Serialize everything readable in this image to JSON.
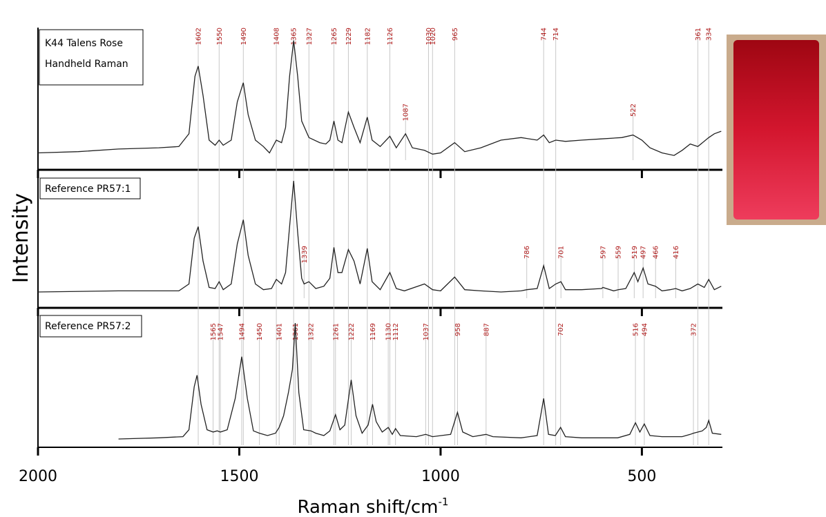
{
  "chart_data": [
    {
      "type": "line",
      "title": "K44 Talens Rose",
      "subtitle": "Handheld Raman",
      "color": "#222222",
      "label_color": "#b01c1c",
      "xlim": [
        2000,
        300
      ],
      "ylim": [
        0,
        1
      ],
      "x": [
        2000,
        1900,
        1800,
        1700,
        1650,
        1625,
        1610,
        1602,
        1590,
        1575,
        1560,
        1550,
        1540,
        1520,
        1505,
        1490,
        1478,
        1460,
        1440,
        1425,
        1408,
        1395,
        1385,
        1375,
        1365,
        1355,
        1345,
        1327,
        1300,
        1285,
        1275,
        1265,
        1255,
        1245,
        1229,
        1215,
        1200,
        1182,
        1170,
        1150,
        1126,
        1110,
        1087,
        1070,
        1040,
        1020,
        1000,
        965,
        940,
        900,
        850,
        800,
        760,
        744,
        730,
        714,
        690,
        650,
        600,
        550,
        522,
        500,
        480,
        450,
        420,
        400,
        380,
        361,
        334,
        320,
        303
      ],
      "values": [
        0.1,
        0.11,
        0.13,
        0.14,
        0.15,
        0.25,
        0.7,
        0.78,
        0.55,
        0.2,
        0.16,
        0.2,
        0.16,
        0.2,
        0.5,
        0.65,
        0.4,
        0.2,
        0.15,
        0.1,
        0.2,
        0.18,
        0.3,
        0.7,
        0.98,
        0.7,
        0.35,
        0.22,
        0.18,
        0.17,
        0.2,
        0.35,
        0.2,
        0.18,
        0.42,
        0.3,
        0.18,
        0.38,
        0.2,
        0.15,
        0.23,
        0.14,
        0.25,
        0.14,
        0.12,
        0.09,
        0.1,
        0.18,
        0.11,
        0.14,
        0.2,
        0.22,
        0.2,
        0.24,
        0.18,
        0.2,
        0.19,
        0.2,
        0.21,
        0.22,
        0.24,
        0.2,
        0.14,
        0.1,
        0.08,
        0.12,
        0.17,
        0.15,
        0.22,
        0.25,
        0.27
      ],
      "peak_labels": [
        1602,
        1550,
        1490,
        1408,
        1365,
        1327,
        1265,
        1229,
        1182,
        1126,
        1030,
        1020,
        965,
        744,
        714,
        361,
        334
      ],
      "peak_labels_low": [
        1087,
        522
      ]
    },
    {
      "type": "line",
      "title": "Reference PR57:1",
      "color": "#222222",
      "label_color": "#b01c1c",
      "xlim": [
        2000,
        300
      ],
      "ylim": [
        0,
        1
      ],
      "x": [
        2000,
        1800,
        1650,
        1625,
        1612,
        1602,
        1590,
        1575,
        1560,
        1550,
        1540,
        1520,
        1505,
        1490,
        1478,
        1460,
        1440,
        1420,
        1408,
        1395,
        1385,
        1375,
        1365,
        1355,
        1345,
        1339,
        1327,
        1310,
        1290,
        1275,
        1265,
        1255,
        1245,
        1229,
        1215,
        1200,
        1182,
        1170,
        1150,
        1126,
        1110,
        1090,
        1040,
        1020,
        1000,
        965,
        940,
        900,
        850,
        800,
        786,
        760,
        744,
        730,
        714,
        701,
        690,
        650,
        600,
        597,
        570,
        559,
        540,
        519,
        510,
        497,
        485,
        466,
        450,
        430,
        416,
        400,
        380,
        361,
        345,
        334,
        320,
        303
      ],
      "values": [
        0.03,
        0.04,
        0.04,
        0.1,
        0.5,
        0.6,
        0.3,
        0.07,
        0.06,
        0.12,
        0.05,
        0.1,
        0.45,
        0.66,
        0.35,
        0.1,
        0.05,
        0.06,
        0.14,
        0.1,
        0.2,
        0.6,
        1.0,
        0.55,
        0.15,
        0.1,
        0.12,
        0.06,
        0.08,
        0.15,
        0.42,
        0.2,
        0.2,
        0.4,
        0.3,
        0.1,
        0.41,
        0.12,
        0.05,
        0.2,
        0.06,
        0.04,
        0.1,
        0.05,
        0.04,
        0.16,
        0.05,
        0.04,
        0.03,
        0.04,
        0.05,
        0.06,
        0.26,
        0.06,
        0.1,
        0.12,
        0.05,
        0.05,
        0.06,
        0.07,
        0.04,
        0.05,
        0.06,
        0.2,
        0.12,
        0.24,
        0.1,
        0.08,
        0.04,
        0.05,
        0.06,
        0.04,
        0.06,
        0.1,
        0.07,
        0.14,
        0.05,
        0.08
      ],
      "peak_labels": [
        1339,
        786,
        701,
        597,
        559,
        519,
        497,
        466,
        416
      ]
    },
    {
      "type": "line",
      "title": "Reference PR57:2",
      "color": "#222222",
      "label_color": "#b01c1c",
      "xlim": [
        2000,
        300
      ],
      "ylim": [
        0,
        1
      ],
      "xticks": [
        2000,
        1500,
        1000,
        500
      ],
      "xlabel": "Raman shift/cm",
      "xlabel_sup": "-1",
      "ylabel": "Intensity",
      "x": [
        1800,
        1700,
        1640,
        1625,
        1612,
        1605,
        1595,
        1580,
        1565,
        1555,
        1547,
        1530,
        1510,
        1494,
        1480,
        1465,
        1450,
        1430,
        1410,
        1401,
        1390,
        1378,
        1368,
        1361,
        1352,
        1340,
        1322,
        1310,
        1290,
        1275,
        1261,
        1250,
        1238,
        1222,
        1210,
        1195,
        1180,
        1169,
        1160,
        1145,
        1130,
        1120,
        1112,
        1100,
        1060,
        1037,
        1020,
        975,
        958,
        945,
        920,
        887,
        870,
        800,
        760,
        744,
        732,
        715,
        702,
        690,
        650,
        560,
        530,
        516,
        505,
        494,
        480,
        450,
        400,
        380,
        372,
        350,
        340,
        334,
        325,
        303
      ],
      "values": [
        0.0,
        0.01,
        0.02,
        0.08,
        0.45,
        0.55,
        0.3,
        0.08,
        0.06,
        0.07,
        0.06,
        0.08,
        0.35,
        0.71,
        0.35,
        0.07,
        0.05,
        0.03,
        0.05,
        0.1,
        0.2,
        0.4,
        0.6,
        1.0,
        0.4,
        0.08,
        0.07,
        0.05,
        0.03,
        0.07,
        0.21,
        0.08,
        0.12,
        0.51,
        0.2,
        0.05,
        0.12,
        0.3,
        0.15,
        0.06,
        0.1,
        0.04,
        0.09,
        0.03,
        0.02,
        0.04,
        0.02,
        0.04,
        0.23,
        0.06,
        0.02,
        0.04,
        0.02,
        0.01,
        0.03,
        0.35,
        0.04,
        0.03,
        0.1,
        0.02,
        0.01,
        0.01,
        0.04,
        0.14,
        0.06,
        0.13,
        0.03,
        0.02,
        0.02,
        0.04,
        0.05,
        0.07,
        0.1,
        0.16,
        0.05,
        0.04
      ],
      "peak_labels": [
        1565,
        1547,
        1494,
        1450,
        1401,
        1361,
        1322,
        1261,
        1222,
        1169,
        1130,
        1112,
        1037,
        958,
        887,
        702,
        516,
        494,
        372
      ]
    }
  ]
}
